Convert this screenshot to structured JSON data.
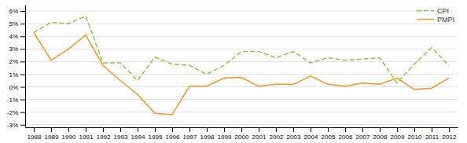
{
  "chart_data": {
    "type": "line",
    "x": [
      1988,
      1989,
      1990,
      1991,
      1992,
      1993,
      1994,
      1995,
      1996,
      1997,
      1998,
      1999,
      2000,
      2001,
      2002,
      2003,
      2004,
      2005,
      2006,
      2007,
      2008,
      2009,
      2010,
      2011,
      2012
    ],
    "series": [
      {
        "name": "CPI",
        "color": "#8dc63f",
        "line_style": "dashed",
        "values": [
          4.3,
          5.1,
          5.0,
          5.6,
          1.9,
          1.9,
          0.5,
          2.35,
          1.8,
          1.7,
          1.0,
          1.7,
          2.8,
          2.8,
          2.3,
          2.8,
          1.9,
          2.3,
          2.1,
          2.2,
          2.3,
          0.3,
          1.8,
          3.1,
          1.7
        ]
      },
      {
        "name": "PMPI",
        "color": "#f7941d",
        "line_style": "solid",
        "values": [
          4.3,
          2.1,
          3.0,
          4.1,
          1.7,
          0.5,
          -0.6,
          -2.1,
          -2.2,
          0.05,
          0.05,
          0.7,
          0.75,
          0.05,
          0.2,
          0.2,
          0.85,
          0.2,
          0.05,
          0.3,
          0.2,
          0.7,
          -0.2,
          -0.1,
          0.7
        ]
      }
    ],
    "xlim": [
      1987.5,
      2012.5
    ],
    "xticks": [
      1988,
      1989,
      1990,
      1991,
      1992,
      1993,
      1994,
      1995,
      1996,
      1997,
      1998,
      1999,
      2000,
      2001,
      2002,
      2003,
      2004,
      2005,
      2006,
      2007,
      2008,
      2009,
      2010,
      2011,
      2012
    ],
    "ylim": [
      -3.2,
      6.5
    ],
    "yticks": [
      {
        "value": -3,
        "label": "-3%"
      },
      {
        "value": -2,
        "label": "-2%"
      },
      {
        "value": -1,
        "label": "-1%"
      },
      {
        "value": 0,
        "label": "0%"
      },
      {
        "value": 1,
        "label": "1%"
      },
      {
        "value": 2,
        "label": "2%"
      },
      {
        "value": 3,
        "label": "3%"
      },
      {
        "value": 4,
        "label": "4%"
      },
      {
        "value": 5,
        "label": "5%"
      },
      {
        "value": 6,
        "label": "6%"
      }
    ],
    "grid": "y",
    "legend": "upper right"
  }
}
